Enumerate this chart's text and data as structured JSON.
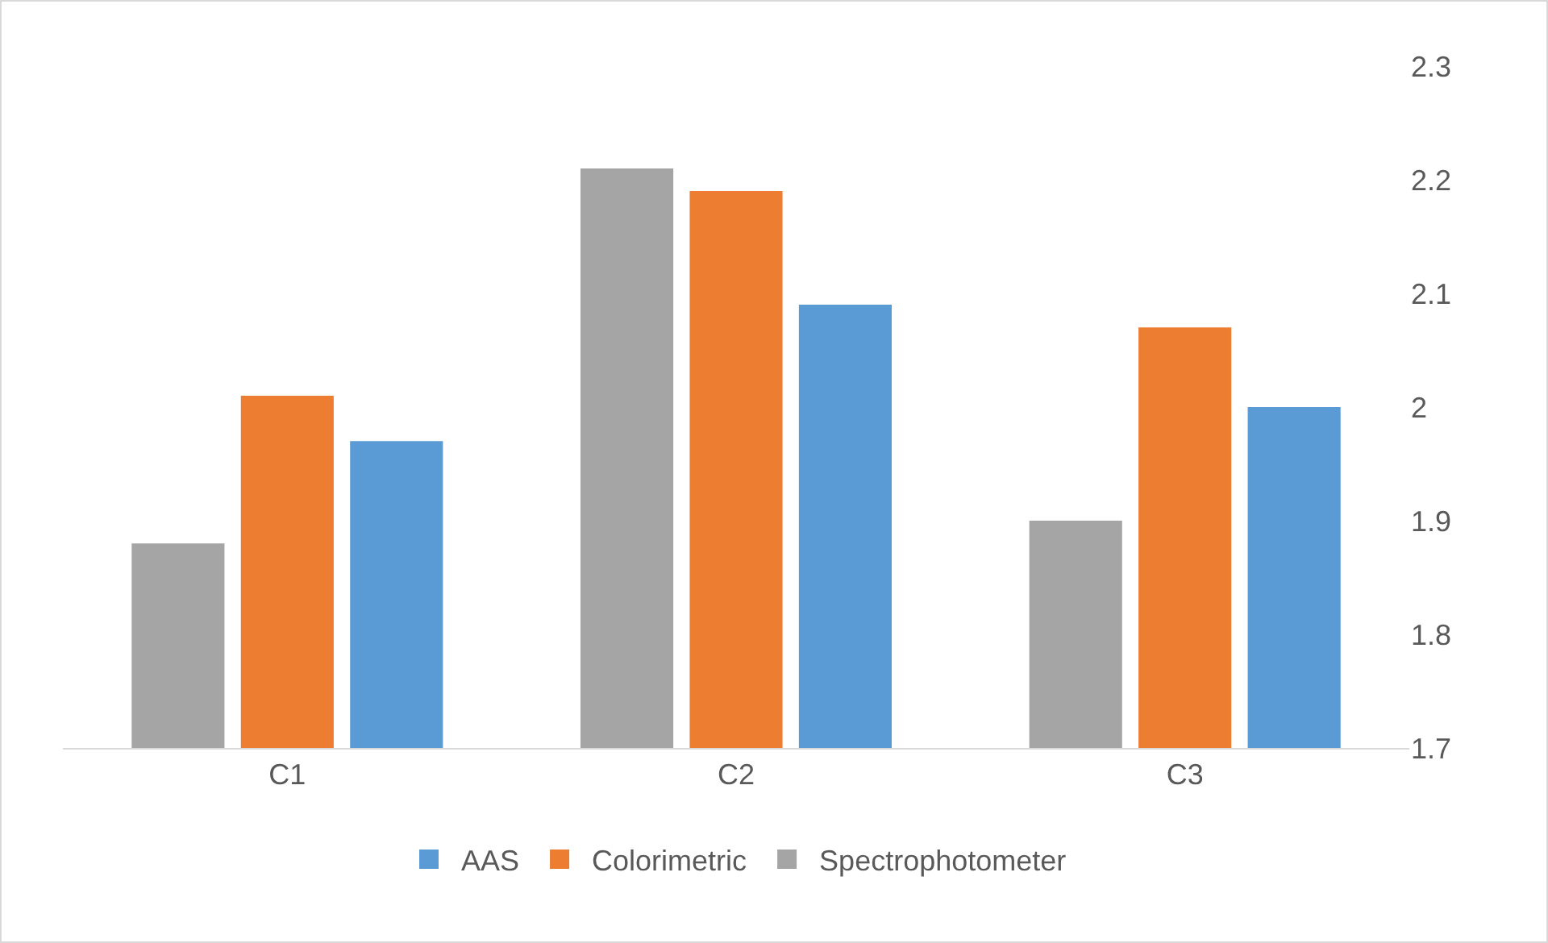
{
  "chart_data": {
    "type": "bar",
    "categories": [
      "C1",
      "C2",
      "C3"
    ],
    "series": [
      {
        "name": "Spectrophotometer",
        "color": "#a5a5a5",
        "values": [
          1.88,
          2.21,
          1.9
        ]
      },
      {
        "name": "Colorimetric",
        "color": "#ed7d31",
        "values": [
          2.01,
          2.19,
          2.07
        ]
      },
      {
        "name": "AAS",
        "color": "#5b9bd5",
        "values": [
          1.97,
          2.09,
          2.0
        ]
      }
    ],
    "ylim": [
      1.7,
      2.3
    ],
    "yticks": [
      1.7,
      1.8,
      1.9,
      2,
      2.1,
      2.2,
      2.3
    ],
    "grid": false,
    "legend": "bottom"
  }
}
